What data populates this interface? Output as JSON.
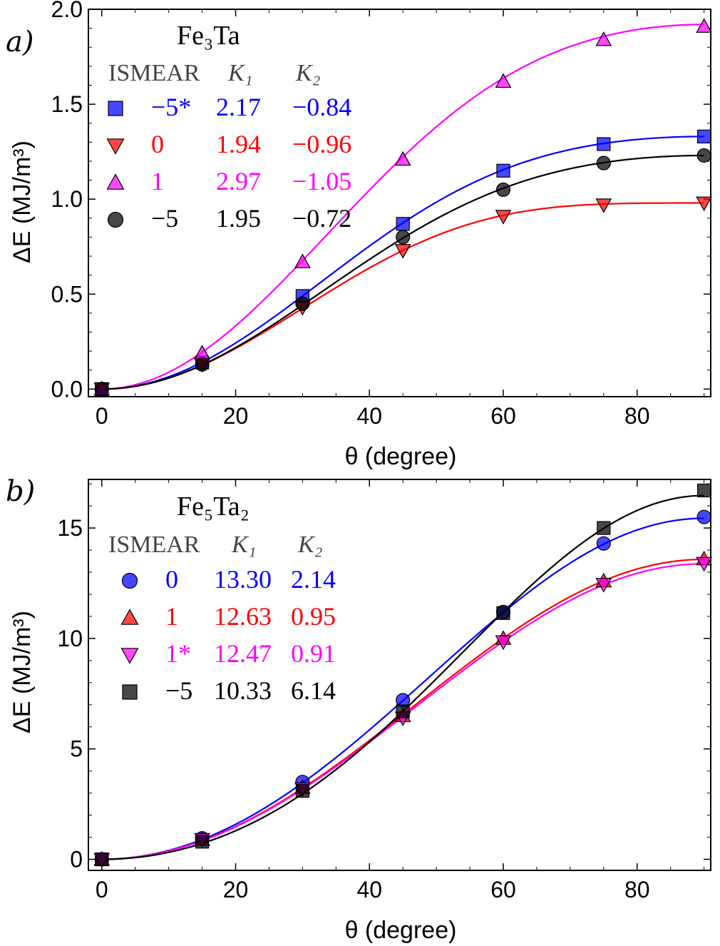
{
  "chart_data": [
    {
      "type": "line",
      "panel_label": "a)",
      "title": "Fe₃Ta",
      "xlabel": "θ (degree)",
      "ylabel": "ΔE (MJ/m³)",
      "xlim": [
        -2,
        91
      ],
      "ylim": [
        -0.04,
        2.0
      ],
      "xticks": [
        "0",
        "20",
        "40",
        "60",
        "80"
      ],
      "xtick_values": [
        0,
        20,
        40,
        60,
        80
      ],
      "yticks": [
        "0.0",
        "0.5",
        "1.0",
        "1.5",
        "2.0"
      ],
      "ytick_values": [
        0,
        0.5,
        1.0,
        1.5,
        2.0
      ],
      "legend_header": [
        "ISMEAR",
        "K₁",
        "K₂"
      ],
      "x": [
        0,
        15,
        30,
        45,
        60,
        75,
        90
      ],
      "series": [
        {
          "name": "-5*",
          "ismear": "−5*",
          "k1": "2.17",
          "k2": "−0.84",
          "K1": 2.17,
          "K2": -0.84,
          "color": "#0000ff",
          "marker": "square",
          "values": [
            0,
            0.14,
            0.49,
            0.87,
            1.15,
            1.29,
            1.33
          ]
        },
        {
          "name": "0",
          "ismear": "0",
          "k1": "1.94",
          "k2": "−0.96",
          "K1": 1.94,
          "K2": -0.96,
          "color": "#ff0000",
          "marker": "triangle-down",
          "values": [
            0,
            0.13,
            0.43,
            0.73,
            0.91,
            0.97,
            0.98
          ]
        },
        {
          "name": "1",
          "ismear": "1",
          "k1": "2.97",
          "k2": "−1.05",
          "K1": 2.97,
          "K2": -1.05,
          "color": "#ff00ff",
          "marker": "triangle-up",
          "values": [
            0,
            0.19,
            0.67,
            1.21,
            1.62,
            1.84,
            1.91
          ]
        },
        {
          "name": "-5",
          "ismear": "−5",
          "k1": "1.95",
          "k2": "−0.72",
          "K1": 1.95,
          "K2": -0.72,
          "color": "#000000",
          "marker": "circle",
          "values": [
            0,
            0.13,
            0.45,
            0.8,
            1.05,
            1.19,
            1.23
          ]
        }
      ]
    },
    {
      "type": "line",
      "panel_label": "b)",
      "title": "Fe₅Ta₂",
      "xlabel": "θ (degree)",
      "ylabel": "ΔE (MJ/m³)",
      "xlim": [
        -2,
        91
      ],
      "ylim": [
        -0.5,
        17.2
      ],
      "xticks": [
        "0",
        "20",
        "40",
        "60",
        "80"
      ],
      "xtick_values": [
        0,
        20,
        40,
        60,
        80
      ],
      "yticks": [
        "0",
        "5",
        "10",
        "15"
      ],
      "ytick_values": [
        0,
        5,
        10,
        15
      ],
      "legend_header": [
        "ISMEAR",
        "K₁",
        "K₂"
      ],
      "x": [
        0,
        15,
        30,
        45,
        60,
        75,
        90
      ],
      "series": [
        {
          "name": "0",
          "ismear": "0",
          "k1": "13.30",
          "k2": "2.14",
          "K1": 13.3,
          "K2": 2.14,
          "color": "#0000ff",
          "marker": "circle",
          "values": [
            0,
            0.95,
            3.5,
            7.2,
            11.2,
            14.3,
            15.5
          ]
        },
        {
          "name": "1",
          "ismear": "1",
          "k1": "12.63",
          "k2": "0.95",
          "K1": 12.63,
          "K2": 0.95,
          "color": "#ff0000",
          "marker": "triangle-up",
          "values": [
            0,
            0.9,
            3.25,
            6.5,
            10.0,
            12.6,
            13.6
          ]
        },
        {
          "name": "1*",
          "ismear": "1*",
          "k1": "12.47",
          "k2": "0.91",
          "K1": 12.47,
          "K2": 0.91,
          "color": "#ff00ff",
          "marker": "triangle-down",
          "values": [
            0,
            0.9,
            3.2,
            6.4,
            9.85,
            12.45,
            13.4
          ]
        },
        {
          "name": "-5",
          "ismear": "−5",
          "k1": "10.33",
          "k2": "6.14",
          "K1": 10.33,
          "K2": 6.14,
          "color": "#000000",
          "marker": "square",
          "values": [
            0,
            0.8,
            3.1,
            6.7,
            11.15,
            15.0,
            16.7
          ]
        }
      ]
    }
  ]
}
